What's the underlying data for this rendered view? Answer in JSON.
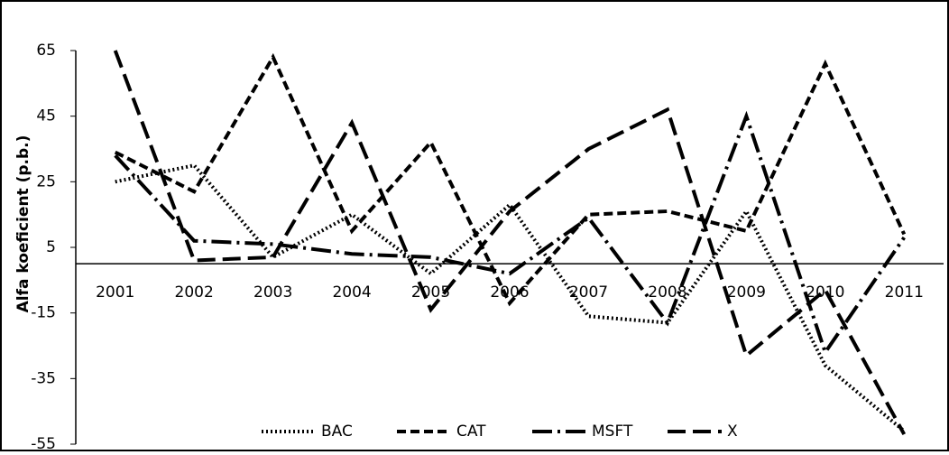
{
  "chart_data": {
    "type": "line",
    "y_label": "Alfa koeficient (p.b.)",
    "categories": [
      "2001",
      "2002",
      "2003",
      "2004",
      "2005",
      "2006",
      "2007",
      "2008",
      "2009",
      "2010",
      "2011"
    ],
    "series": [
      {
        "name": "BAC",
        "color": "#000000",
        "dash": "2,3",
        "values": [
          25,
          30,
          2,
          15,
          -3,
          18,
          -16,
          -18,
          16,
          -31,
          -51
        ]
      },
      {
        "name": "CAT",
        "color": "#000000",
        "dash": "10,5",
        "values": [
          34,
          22,
          63,
          10,
          37,
          -12,
          15,
          16,
          10,
          61,
          9
        ]
      },
      {
        "name": "MSFT",
        "color": "#000000",
        "dash": "22,6,3,6",
        "values": [
          33,
          7,
          6,
          3,
          2,
          -3,
          14,
          -18,
          45,
          -27,
          8
        ]
      },
      {
        "name": "X",
        "color": "#000000",
        "dash": "20,8",
        "values": [
          65,
          1,
          2,
          43,
          -14,
          16,
          35,
          47,
          -28,
          -8,
          -52
        ]
      }
    ],
    "ylim": [
      -55,
      65
    ],
    "yticks": [
      65,
      45,
      25,
      5,
      -15,
      -35,
      -55
    ],
    "legend": "bottom"
  }
}
